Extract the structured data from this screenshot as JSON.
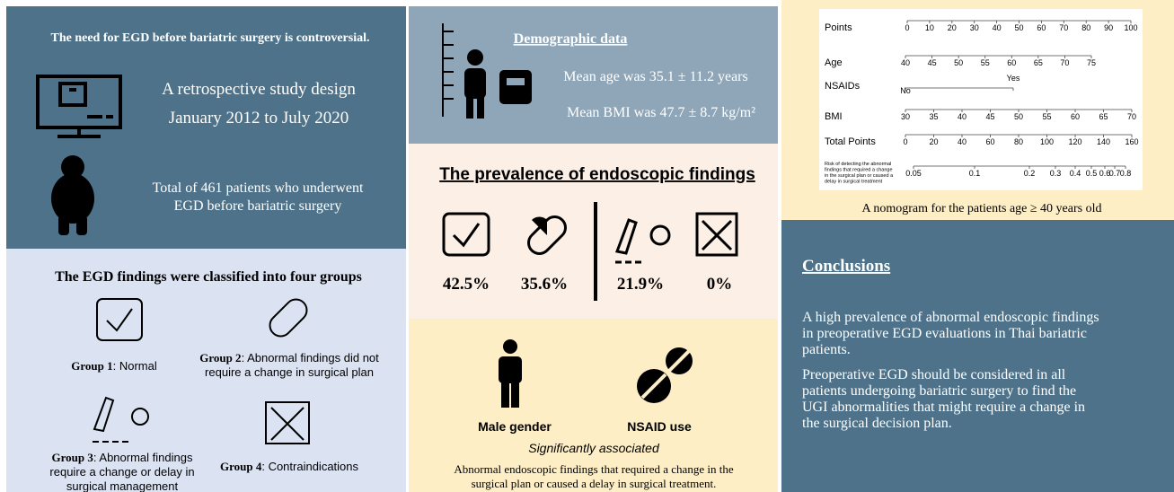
{
  "left_top": {
    "heading": "The need for EGD before bariatric surgery is controversial.",
    "design": [
      "A retrospective study design",
      "January 2012 to July 2020"
    ],
    "patients": [
      "Total of 461 patients who underwent",
      "EGD before bariatric surgery"
    ]
  },
  "left_bottom": {
    "heading": "The EGD findings were classified into four groups",
    "groups": [
      {
        "label": "Group 1",
        "text": [
          ": Normal"
        ]
      },
      {
        "label": "Group 2",
        "text": [
          ": Abnormal findings did not",
          "require a change in surgical plan"
        ]
      },
      {
        "label": "Group 3",
        "text": [
          ": Abnormal findings",
          "require a change or delay in",
          "surgical management"
        ]
      },
      {
        "label": "Group 4",
        "text": [
          ": Contraindications"
        ]
      }
    ]
  },
  "demographics": {
    "heading": "Demographic data",
    "age": "Mean age was 35.1 ± 11.2 years",
    "bmi": "Mean BMI was 47.7 ± 8.7 kg/m²"
  },
  "prevalence": {
    "heading": "The prevalence of endoscopic findings",
    "values": [
      "42.5%",
      "35.6%",
      "21.9%",
      "0%"
    ]
  },
  "associations": {
    "factors": [
      "Male gender",
      "NSAID use"
    ],
    "note": "Significantly associated",
    "caption": [
      "Abnormal endoscopic findings that required a change in the",
      "surgical plan or caused a delay in surgical treatment."
    ]
  },
  "nomogram": {
    "rows": [
      {
        "name": "Points",
        "ticks": [
          0,
          10,
          20,
          30,
          40,
          50,
          60,
          70,
          80,
          90,
          100
        ]
      },
      {
        "name": "Age",
        "ticks": [
          40,
          45,
          50,
          55,
          60,
          65,
          70,
          75
        ]
      },
      {
        "name": "NSAIDs",
        "ticks": [
          "No",
          "Yes"
        ]
      },
      {
        "name": "BMI",
        "ticks": [
          30,
          35,
          40,
          45,
          50,
          55,
          60,
          65,
          70
        ]
      },
      {
        "name": "Total Points",
        "ticks": [
          0,
          20,
          40,
          60,
          80,
          100,
          120,
          140,
          160
        ]
      },
      {
        "name": [
          "Risk of detecting the abnormal",
          "findings that required a change",
          "in the surgical plan or caused a",
          "delay in surgical treatment"
        ],
        "ticks": [
          0.05,
          0.1,
          0.2,
          0.3,
          0.4,
          0.5,
          0.6,
          0.7,
          0.8
        ]
      }
    ],
    "caption": "A nomogram for the patients age ≥ 40 years old"
  },
  "conclusions": {
    "heading": "Conclusions",
    "paragraphs": [
      [
        "A high prevalence of abnormal endoscopic findings",
        "in preoperative EGD evaluations in Thai bariatric",
        "patients."
      ],
      [
        "Preoperative EGD should be considered in all",
        "patients undergoing bariatric surgery to find the",
        "UGI abnormalities that might require a change in",
        "the surgical decision plan."
      ]
    ]
  }
}
